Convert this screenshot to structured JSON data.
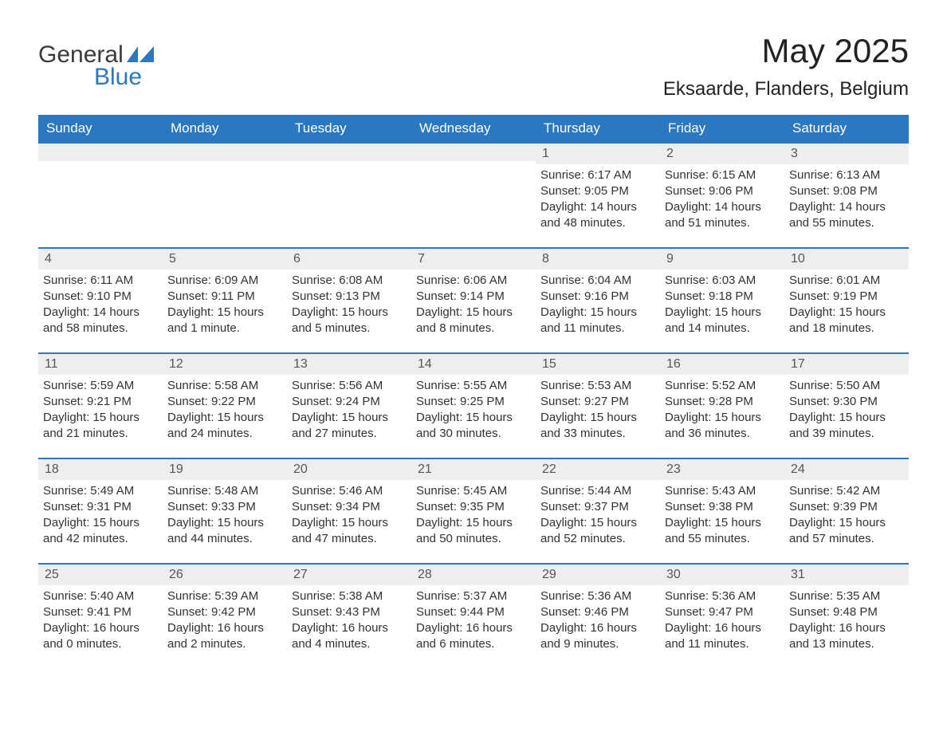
{
  "brand": {
    "word1": "General",
    "word2": "Blue",
    "logo_color": "#2b77c0",
    "text_color": "#3a3a3a"
  },
  "title": "May 2025",
  "location": "Eksaarde, Flanders, Belgium",
  "colors": {
    "header_bg": "#2b77c0",
    "header_text": "#ffffff",
    "daynum_bg": "#eeeeee",
    "border": "#2b77c0",
    "body_text": "#333333",
    "page_bg": "#ffffff"
  },
  "typography": {
    "title_fontsize": 42,
    "location_fontsize": 24,
    "weekday_fontsize": 17,
    "body_fontsize": 15
  },
  "weekdays": [
    "Sunday",
    "Monday",
    "Tuesday",
    "Wednesday",
    "Thursday",
    "Friday",
    "Saturday"
  ],
  "weeks": [
    [
      {
        "day": "",
        "sunrise": "",
        "sunset": "",
        "daylight": ""
      },
      {
        "day": "",
        "sunrise": "",
        "sunset": "",
        "daylight": ""
      },
      {
        "day": "",
        "sunrise": "",
        "sunset": "",
        "daylight": ""
      },
      {
        "day": "",
        "sunrise": "",
        "sunset": "",
        "daylight": ""
      },
      {
        "day": "1",
        "sunrise": "Sunrise: 6:17 AM",
        "sunset": "Sunset: 9:05 PM",
        "daylight": "Daylight: 14 hours and 48 minutes."
      },
      {
        "day": "2",
        "sunrise": "Sunrise: 6:15 AM",
        "sunset": "Sunset: 9:06 PM",
        "daylight": "Daylight: 14 hours and 51 minutes."
      },
      {
        "day": "3",
        "sunrise": "Sunrise: 6:13 AM",
        "sunset": "Sunset: 9:08 PM",
        "daylight": "Daylight: 14 hours and 55 minutes."
      }
    ],
    [
      {
        "day": "4",
        "sunrise": "Sunrise: 6:11 AM",
        "sunset": "Sunset: 9:10 PM",
        "daylight": "Daylight: 14 hours and 58 minutes."
      },
      {
        "day": "5",
        "sunrise": "Sunrise: 6:09 AM",
        "sunset": "Sunset: 9:11 PM",
        "daylight": "Daylight: 15 hours and 1 minute."
      },
      {
        "day": "6",
        "sunrise": "Sunrise: 6:08 AM",
        "sunset": "Sunset: 9:13 PM",
        "daylight": "Daylight: 15 hours and 5 minutes."
      },
      {
        "day": "7",
        "sunrise": "Sunrise: 6:06 AM",
        "sunset": "Sunset: 9:14 PM",
        "daylight": "Daylight: 15 hours and 8 minutes."
      },
      {
        "day": "8",
        "sunrise": "Sunrise: 6:04 AM",
        "sunset": "Sunset: 9:16 PM",
        "daylight": "Daylight: 15 hours and 11 minutes."
      },
      {
        "day": "9",
        "sunrise": "Sunrise: 6:03 AM",
        "sunset": "Sunset: 9:18 PM",
        "daylight": "Daylight: 15 hours and 14 minutes."
      },
      {
        "day": "10",
        "sunrise": "Sunrise: 6:01 AM",
        "sunset": "Sunset: 9:19 PM",
        "daylight": "Daylight: 15 hours and 18 minutes."
      }
    ],
    [
      {
        "day": "11",
        "sunrise": "Sunrise: 5:59 AM",
        "sunset": "Sunset: 9:21 PM",
        "daylight": "Daylight: 15 hours and 21 minutes."
      },
      {
        "day": "12",
        "sunrise": "Sunrise: 5:58 AM",
        "sunset": "Sunset: 9:22 PM",
        "daylight": "Daylight: 15 hours and 24 minutes."
      },
      {
        "day": "13",
        "sunrise": "Sunrise: 5:56 AM",
        "sunset": "Sunset: 9:24 PM",
        "daylight": "Daylight: 15 hours and 27 minutes."
      },
      {
        "day": "14",
        "sunrise": "Sunrise: 5:55 AM",
        "sunset": "Sunset: 9:25 PM",
        "daylight": "Daylight: 15 hours and 30 minutes."
      },
      {
        "day": "15",
        "sunrise": "Sunrise: 5:53 AM",
        "sunset": "Sunset: 9:27 PM",
        "daylight": "Daylight: 15 hours and 33 minutes."
      },
      {
        "day": "16",
        "sunrise": "Sunrise: 5:52 AM",
        "sunset": "Sunset: 9:28 PM",
        "daylight": "Daylight: 15 hours and 36 minutes."
      },
      {
        "day": "17",
        "sunrise": "Sunrise: 5:50 AM",
        "sunset": "Sunset: 9:30 PM",
        "daylight": "Daylight: 15 hours and 39 minutes."
      }
    ],
    [
      {
        "day": "18",
        "sunrise": "Sunrise: 5:49 AM",
        "sunset": "Sunset: 9:31 PM",
        "daylight": "Daylight: 15 hours and 42 minutes."
      },
      {
        "day": "19",
        "sunrise": "Sunrise: 5:48 AM",
        "sunset": "Sunset: 9:33 PM",
        "daylight": "Daylight: 15 hours and 44 minutes."
      },
      {
        "day": "20",
        "sunrise": "Sunrise: 5:46 AM",
        "sunset": "Sunset: 9:34 PM",
        "daylight": "Daylight: 15 hours and 47 minutes."
      },
      {
        "day": "21",
        "sunrise": "Sunrise: 5:45 AM",
        "sunset": "Sunset: 9:35 PM",
        "daylight": "Daylight: 15 hours and 50 minutes."
      },
      {
        "day": "22",
        "sunrise": "Sunrise: 5:44 AM",
        "sunset": "Sunset: 9:37 PM",
        "daylight": "Daylight: 15 hours and 52 minutes."
      },
      {
        "day": "23",
        "sunrise": "Sunrise: 5:43 AM",
        "sunset": "Sunset: 9:38 PM",
        "daylight": "Daylight: 15 hours and 55 minutes."
      },
      {
        "day": "24",
        "sunrise": "Sunrise: 5:42 AM",
        "sunset": "Sunset: 9:39 PM",
        "daylight": "Daylight: 15 hours and 57 minutes."
      }
    ],
    [
      {
        "day": "25",
        "sunrise": "Sunrise: 5:40 AM",
        "sunset": "Sunset: 9:41 PM",
        "daylight": "Daylight: 16 hours and 0 minutes."
      },
      {
        "day": "26",
        "sunrise": "Sunrise: 5:39 AM",
        "sunset": "Sunset: 9:42 PM",
        "daylight": "Daylight: 16 hours and 2 minutes."
      },
      {
        "day": "27",
        "sunrise": "Sunrise: 5:38 AM",
        "sunset": "Sunset: 9:43 PM",
        "daylight": "Daylight: 16 hours and 4 minutes."
      },
      {
        "day": "28",
        "sunrise": "Sunrise: 5:37 AM",
        "sunset": "Sunset: 9:44 PM",
        "daylight": "Daylight: 16 hours and 6 minutes."
      },
      {
        "day": "29",
        "sunrise": "Sunrise: 5:36 AM",
        "sunset": "Sunset: 9:46 PM",
        "daylight": "Daylight: 16 hours and 9 minutes."
      },
      {
        "day": "30",
        "sunrise": "Sunrise: 5:36 AM",
        "sunset": "Sunset: 9:47 PM",
        "daylight": "Daylight: 16 hours and 11 minutes."
      },
      {
        "day": "31",
        "sunrise": "Sunrise: 5:35 AM",
        "sunset": "Sunset: 9:48 PM",
        "daylight": "Daylight: 16 hours and 13 minutes."
      }
    ]
  ]
}
